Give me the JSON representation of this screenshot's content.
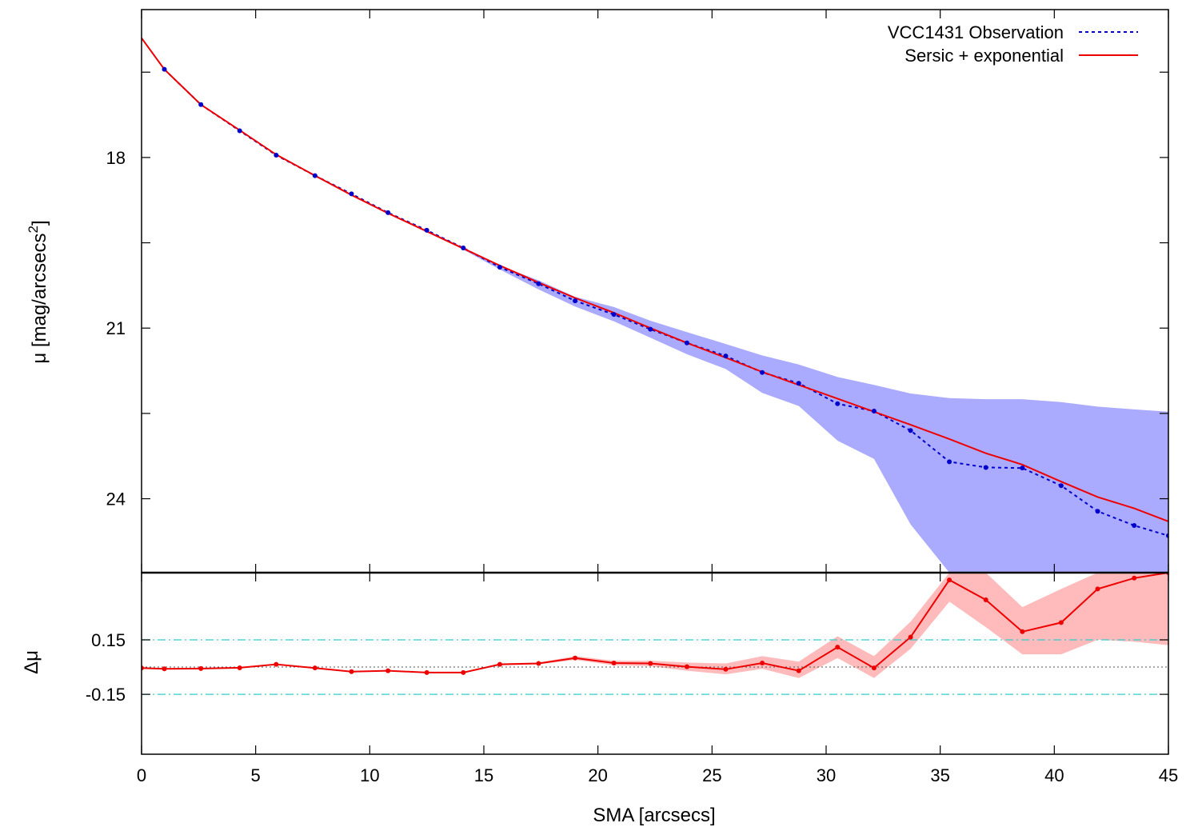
{
  "chart_data": [
    {
      "type": "line",
      "panel": "profile",
      "ylabel_main": "μ [mag/arcsecs",
      "ylabel_sup": "2",
      "ylabel_close": "]",
      "xlim": [
        0,
        45
      ],
      "ylim": [
        25.3,
        15.4
      ],
      "y_inverted": true,
      "yticks": [
        18,
        21,
        24
      ],
      "ytick_labels": [
        "18",
        "21",
        "24"
      ],
      "legend_position": "top-right",
      "legend": [
        {
          "label": "VCC1431 Observation",
          "color": "#0000cc",
          "style": "dotted"
        },
        {
          "label": "Sersic + exponential",
          "color": "#ee0000",
          "style": "solid"
        }
      ],
      "band_color": "#aaaaff",
      "series": [
        {
          "name": "VCC1431 Observation",
          "x": [
            1.0,
            2.6,
            4.3,
            5.9,
            7.6,
            9.2,
            10.8,
            12.5,
            14.1,
            15.7,
            17.4,
            19.0,
            20.7,
            22.3,
            23.9,
            25.6,
            27.2,
            28.8,
            30.5,
            32.1,
            33.7,
            35.4,
            37.0,
            38.6,
            40.3,
            41.9,
            43.5,
            45.0
          ],
          "y": [
            16.45,
            17.07,
            17.53,
            17.96,
            18.32,
            18.64,
            18.97,
            19.28,
            19.59,
            19.93,
            20.22,
            20.52,
            20.76,
            21.02,
            21.26,
            21.49,
            21.78,
            21.97,
            22.33,
            22.46,
            22.8,
            23.35,
            23.45,
            23.46,
            23.77,
            24.22,
            24.47,
            24.65
          ],
          "err_low": [
            16.45,
            17.07,
            17.53,
            17.96,
            18.32,
            18.64,
            18.97,
            19.28,
            19.58,
            19.9,
            20.16,
            20.45,
            20.63,
            20.87,
            21.07,
            21.28,
            21.48,
            21.64,
            21.86,
            22.0,
            22.15,
            22.23,
            22.25,
            22.25,
            22.3,
            22.38,
            22.43,
            22.47
          ],
          "err_high": [
            16.45,
            17.07,
            17.53,
            17.96,
            18.32,
            18.64,
            18.97,
            19.29,
            19.62,
            19.97,
            20.32,
            20.62,
            20.88,
            21.17,
            21.46,
            21.72,
            22.14,
            22.37,
            22.98,
            23.3,
            24.45,
            25.3,
            25.3,
            25.3,
            25.3,
            25.3,
            25.3,
            25.3
          ]
        },
        {
          "name": "Sersic + exponential",
          "x": [
            0.0,
            1.0,
            2.6,
            4.3,
            5.9,
            7.6,
            9.2,
            10.8,
            12.5,
            14.1,
            15.7,
            17.4,
            19.0,
            20.7,
            22.3,
            23.9,
            25.6,
            27.2,
            28.8,
            30.5,
            32.1,
            33.7,
            35.4,
            37.0,
            38.6,
            40.3,
            41.9,
            43.5,
            45.0
          ],
          "y": [
            15.9,
            16.45,
            17.07,
            17.52,
            17.95,
            18.32,
            18.66,
            18.98,
            19.3,
            19.6,
            19.9,
            20.2,
            20.47,
            20.73,
            21.0,
            21.26,
            21.52,
            21.77,
            22.0,
            22.24,
            22.47,
            22.7,
            22.95,
            23.2,
            23.4,
            23.7,
            23.97,
            24.17,
            24.4
          ]
        }
      ]
    },
    {
      "type": "line",
      "panel": "residuals",
      "ylabel": "Δμ",
      "xlabel": "SMA [arcsecs]",
      "xlim": [
        0,
        45
      ],
      "ylim": [
        -0.48,
        0.52
      ],
      "xticks": [
        0,
        5,
        10,
        15,
        20,
        25,
        30,
        35,
        40,
        45
      ],
      "xtick_labels": [
        "0",
        "5",
        "10",
        "15",
        "20",
        "25",
        "30",
        "35",
        "40",
        "45"
      ],
      "yticks": [
        0.15,
        -0.15
      ],
      "ytick_labels": [
        "0.15",
        "-0.15"
      ],
      "reference_lines": [
        0.15,
        -0.15
      ],
      "reference_color": "#33cccc",
      "zero_line": 0,
      "band_color": "#ffbbbb",
      "series": [
        {
          "name": "",
          "x": [
            0.0,
            1.0,
            2.6,
            4.3,
            5.9,
            7.6,
            9.2,
            10.8,
            12.5,
            14.1,
            15.7,
            17.4,
            19.0,
            20.7,
            22.3,
            23.9,
            25.6,
            27.2,
            28.8,
            30.5,
            32.1,
            33.7,
            35.4,
            37.0,
            38.6,
            40.3,
            41.9,
            43.5,
            45.0
          ],
          "y": [
            -0.005,
            -0.01,
            -0.008,
            -0.004,
            0.015,
            -0.005,
            -0.025,
            -0.02,
            -0.03,
            -0.03,
            0.015,
            0.02,
            0.05,
            0.022,
            0.02,
            0.002,
            -0.012,
            0.022,
            -0.02,
            0.11,
            -0.005,
            0.165,
            0.48,
            0.37,
            0.195,
            0.245,
            0.43,
            0.49,
            0.52
          ],
          "err_low": [
            -0.005,
            -0.01,
            -0.008,
            -0.004,
            0.015,
            -0.005,
            -0.025,
            -0.02,
            -0.03,
            -0.03,
            0.01,
            0.015,
            0.04,
            0.01,
            0.005,
            -0.02,
            -0.04,
            -0.01,
            -0.06,
            0.05,
            -0.06,
            0.1,
            0.36,
            0.22,
            0.07,
            0.07,
            0.15,
            0.14,
            0.12
          ],
          "err_high": [
            -0.005,
            -0.01,
            -0.008,
            -0.004,
            0.015,
            -0.005,
            -0.025,
            -0.02,
            -0.03,
            -0.03,
            0.02,
            0.025,
            0.06,
            0.035,
            0.035,
            0.025,
            0.02,
            0.06,
            0.03,
            0.17,
            0.06,
            0.25,
            0.52,
            0.52,
            0.33,
            0.43,
            0.52,
            0.52,
            0.52
          ]
        }
      ]
    }
  ]
}
